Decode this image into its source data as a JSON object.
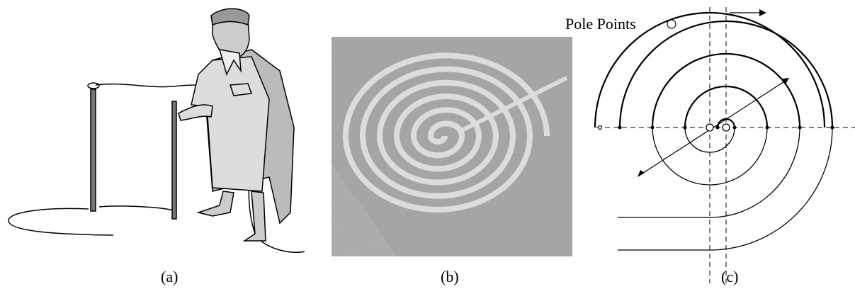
{
  "captions": [
    "(a)",
    "(b)",
    "(c)"
  ],
  "legend": {
    "label": "Pole Points"
  }
}
